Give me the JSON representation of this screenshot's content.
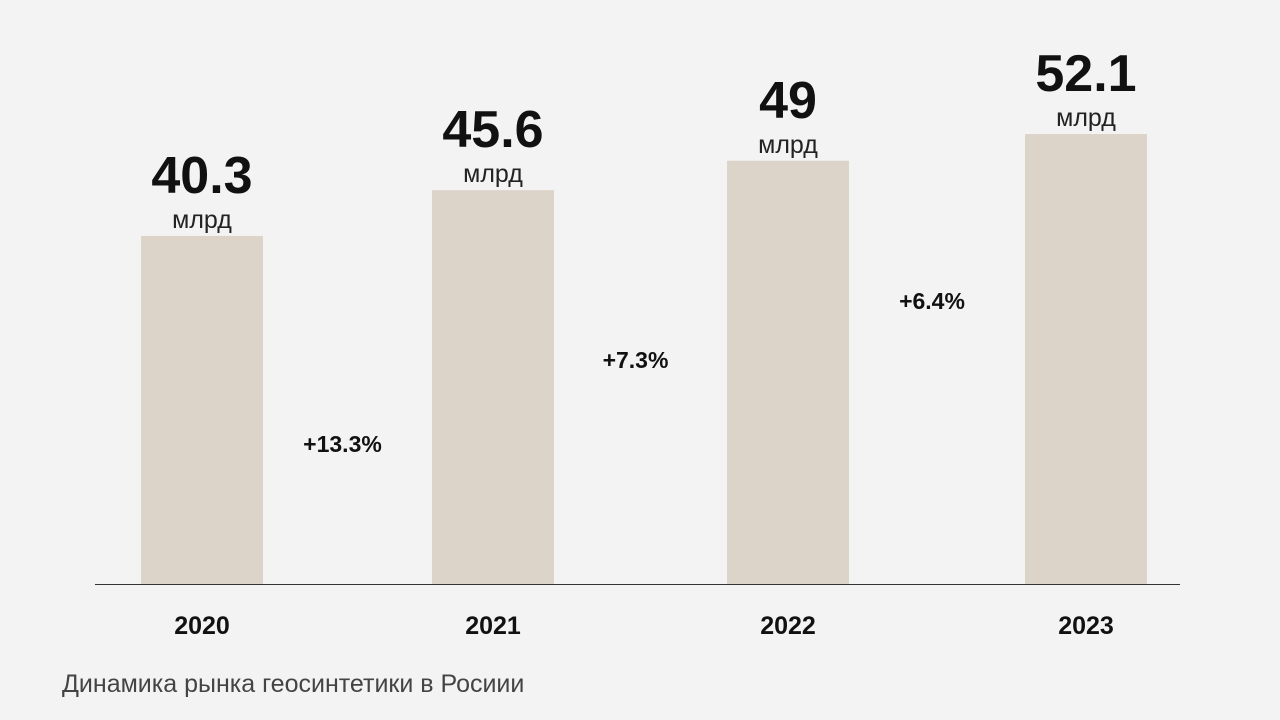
{
  "chart_data": {
    "type": "bar",
    "title": "",
    "caption": "Динамика рынка геосинтетики в Росиии",
    "categories": [
      "2020",
      "2021",
      "2022",
      "2023"
    ],
    "values": [
      40.3,
      45.6,
      49,
      52.1
    ],
    "value_labels": [
      "40.3",
      "45.6",
      "49",
      "52.1"
    ],
    "unit": "млрд",
    "growth_labels": [
      "+13.3%",
      "+7.3%",
      "+6.4%"
    ],
    "xlabel": "",
    "ylabel": "",
    "ylim": [
      0,
      55
    ],
    "grid": false,
    "legend": "none",
    "colors": {
      "background": "#f3f3f3",
      "bar": "#ddd4c9",
      "axis": "#333333",
      "text": "#111111"
    }
  }
}
